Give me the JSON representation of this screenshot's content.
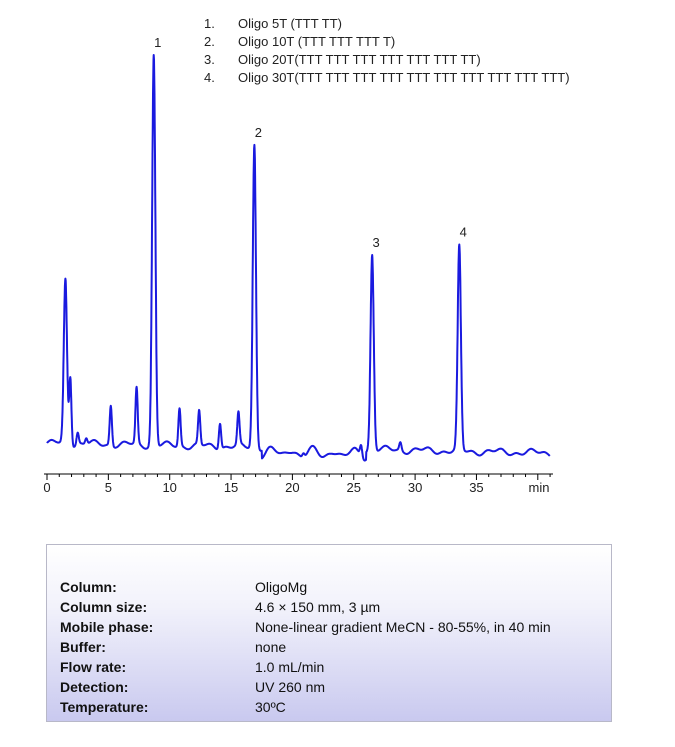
{
  "chart_data": {
    "type": "line",
    "xlabel": "min",
    "x_ticks": [
      0,
      5,
      10,
      15,
      20,
      25,
      30,
      35
    ],
    "xlim": [
      0,
      41
    ],
    "ylim": [
      0,
      100
    ],
    "line_color": "#1a1adf",
    "peaks": [
      {
        "label": "",
        "x": 1.5,
        "y": 41
      },
      {
        "label": "",
        "x": 1.9,
        "y": 17
      },
      {
        "label": "",
        "x": 2.5,
        "y": 3
      },
      {
        "label": "",
        "x": 3.2,
        "y": 1.5
      },
      {
        "label": "",
        "x": 5.2,
        "y": 10
      },
      {
        "label": "",
        "x": 7.3,
        "y": 14
      },
      {
        "label": "1",
        "x": 8.7,
        "y": 98
      },
      {
        "label": "",
        "x": 10.8,
        "y": 9.5
      },
      {
        "label": "",
        "x": 12.4,
        "y": 8.5
      },
      {
        "label": "",
        "x": 14.1,
        "y": 6.5
      },
      {
        "label": "",
        "x": 15.6,
        "y": 8
      },
      {
        "label": "2",
        "x": 16.9,
        "y": 76
      },
      {
        "label": "",
        "x": 20.9,
        "y": 1
      },
      {
        "label": "",
        "x": 25.6,
        "y": 3
      },
      {
        "label": "3",
        "x": 26.5,
        "y": 49
      },
      {
        "label": "",
        "x": 28.8,
        "y": 2
      },
      {
        "label": "4",
        "x": 33.6,
        "y": 51
      }
    ]
  },
  "legend": [
    {
      "num": "1.",
      "text": "Oligo 5T (TTT TT)"
    },
    {
      "num": "2.",
      "text": "Oligo 10T (TTT TTT TTT T)"
    },
    {
      "num": "3.",
      "text": "Oligo 20T(TTT TTT TTT TTT TTT TTT TT)"
    },
    {
      "num": "4.",
      "text": "Oligo 30T(TTT TTT TTT TTT TTT TTT TTT TTT TTT TTT)"
    }
  ],
  "conditions": [
    {
      "label": "Column:",
      "value": "OligoMg"
    },
    {
      "label": "Column size:",
      "value": "4.6 × 150 mm, 3 µm"
    },
    {
      "label": "Mobile phase:",
      "value": "None-linear gradient MeCN - 80-55%, in 40 min"
    },
    {
      "label": "Buffer:",
      "value": "none"
    },
    {
      "label": "Flow rate:",
      "value": "1.0 mL/min"
    },
    {
      "label": "Detection:",
      "value": "UV 260 nm"
    },
    {
      "label": "Temperature:",
      "value": "30ºC"
    }
  ]
}
